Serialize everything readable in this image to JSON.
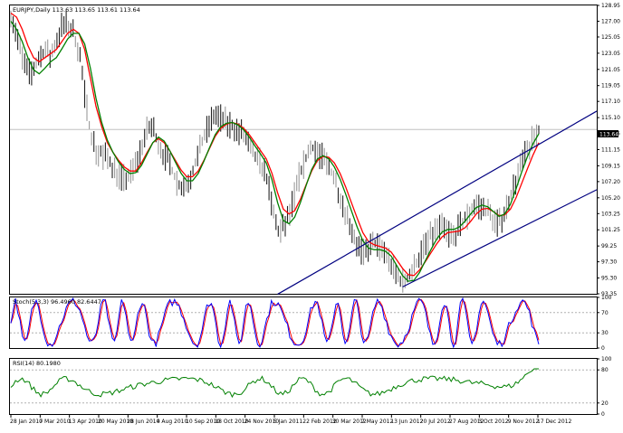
{
  "chart_data": {
    "type": "line",
    "instrument": {
      "header": "EURJPY,Daily  113.63 113.65 113.61 113.64",
      "last_price_label": "113.64",
      "price_series": [
        128.0,
        125.5,
        122.5,
        120.5,
        121.0,
        122.5,
        123.5,
        122.5,
        124.5,
        126.5,
        126.5,
        125.5,
        123.5,
        118.0,
        113.5,
        111.0,
        110.5,
        110.2,
        109.0,
        108.0,
        107.5,
        108.0,
        109.5,
        111.5,
        113.5,
        114.0,
        112.0,
        110.5,
        109.5,
        107.5,
        106.5,
        107.0,
        108.5,
        110.5,
        112.5,
        114.5,
        115.5,
        115.0,
        114.5,
        114.2,
        113.5,
        113.0,
        111.5,
        110.0,
        109.5,
        108.0,
        104.0,
        101.0,
        101.5,
        103.0,
        105.5,
        108.5,
        110.0,
        111.5,
        111.0,
        110.0,
        109.0,
        107.5,
        105.5,
        103.5,
        101.5,
        99.5,
        98.2,
        99.0,
        99.5,
        99.0,
        98.5,
        97.0,
        95.5,
        94.8,
        95.2,
        96.5,
        98.0,
        99.5,
        100.5,
        101.5,
        101.5,
        101.0,
        100.5,
        101.5,
        102.5,
        103.5,
        104.5,
        104.0,
        103.5,
        102.5,
        102.0,
        103.5,
        105.5,
        107.5,
        109.5,
        111.0,
        112.5,
        113.5
      ],
      "red_ma": [
        128.0,
        127.5,
        126.0,
        124.0,
        122.5,
        122.0,
        122.5,
        123.0,
        123.5,
        124.5,
        125.5,
        126.0,
        125.5,
        123.5,
        120.0,
        116.5,
        114.0,
        112.0,
        110.8,
        109.8,
        109.0,
        108.5,
        108.5,
        109.5,
        110.8,
        112.0,
        112.5,
        112.0,
        111.0,
        109.8,
        108.6,
        107.8,
        107.8,
        108.5,
        109.8,
        111.3,
        112.8,
        113.8,
        114.3,
        114.5,
        114.3,
        113.8,
        113.0,
        112.0,
        111.0,
        110.0,
        108.2,
        105.8,
        103.8,
        103.2,
        103.6,
        105.0,
        106.8,
        108.5,
        109.8,
        110.3,
        110.2,
        109.5,
        108.2,
        106.5,
        104.6,
        102.7,
        100.9,
        99.8,
        99.4,
        99.2,
        99.0,
        98.5,
        97.5,
        96.5,
        95.7,
        95.6,
        96.3,
        97.3,
        98.4,
        99.5,
        100.4,
        100.9,
        101.0,
        101.1,
        101.5,
        102.3,
        103.2,
        103.8,
        103.9,
        103.5,
        103.0,
        103.1,
        103.8,
        105.2,
        107.0,
        108.8,
        110.5,
        112.0
      ],
      "green_ma": [
        127.0,
        126.0,
        124.5,
        122.5,
        121.0,
        120.5,
        121.2,
        122.0,
        122.5,
        123.6,
        124.8,
        125.5,
        125.5,
        124.2,
        121.2,
        117.5,
        114.5,
        112.3,
        110.8,
        109.6,
        108.7,
        108.2,
        108.3,
        109.2,
        110.6,
        112.0,
        112.7,
        112.2,
        111.0,
        109.6,
        108.2,
        107.3,
        107.3,
        108.2,
        109.7,
        111.4,
        113.0,
        114.0,
        114.4,
        114.5,
        114.2,
        113.6,
        112.7,
        111.6,
        110.6,
        109.5,
        107.4,
        104.6,
        102.4,
        102.0,
        102.8,
        104.6,
        106.7,
        108.7,
        110.0,
        110.4,
        110.0,
        109.0,
        107.5,
        105.6,
        103.6,
        101.6,
        99.9,
        99.0,
        98.8,
        98.8,
        98.6,
        98.0,
        96.8,
        95.6,
        94.9,
        95.0,
        96.0,
        97.4,
        98.8,
        100.1,
        101.0,
        101.3,
        101.3,
        101.6,
        102.3,
        103.2,
        104.0,
        104.3,
        104.1,
        103.5,
        102.9,
        103.2,
        104.4,
        106.3,
        108.4,
        110.3,
        111.9,
        113.1
      ],
      "ylim": [
        93.35,
        128.95
      ],
      "y_ticks": [
        "128.95",
        "127.00",
        "125.05",
        "123.05",
        "121.05",
        "119.05",
        "117.10",
        "115.10",
        "113.15",
        "111.15",
        "109.15",
        "107.20",
        "105.20",
        "103.25",
        "101.25",
        "99.25",
        "97.30",
        "95.30",
        "93.35"
      ],
      "channel": {
        "upper": {
          "from": {
            "x_index": 47,
            "y": 93.3
          },
          "to": {
            "x_index": 112,
            "y": 115.9
          }
        },
        "lower": {
          "from": {
            "x_index": 69,
            "y": 94.2
          },
          "to": {
            "x_index": 112,
            "y": 106.2
          }
        }
      },
      "colors": {
        "price": "#000000",
        "red_ma": "#ff0000",
        "green_ma": "#008000",
        "channel": "#000080"
      }
    },
    "stochastic": {
      "header": "Stoch(5,3,3) 96.4960 82.6447",
      "ylim": [
        0,
        100
      ],
      "y_ticks": [
        "100",
        "70",
        "30",
        "0"
      ],
      "levels": [
        70,
        30
      ],
      "colors": {
        "main": "#0000ff",
        "signal": "#ff0000"
      }
    },
    "rsi": {
      "header": "RSI(14) 80.1980",
      "ylim": [
        0,
        100
      ],
      "y_ticks": [
        "100",
        "80",
        "20",
        "0"
      ],
      "levels": [
        80,
        20
      ],
      "color": "#008000"
    },
    "x_labels": [
      "28 Jan 2010",
      "7 Mar 2010",
      "13 Apr 2010",
      "20 May 2010",
      "28 Jun 2010",
      "4 Aug 2010",
      "10 Sep 2010",
      "18 Oct 2010",
      "24 Nov 2010",
      "5 Jan 2011",
      "22 Feb 2012",
      "30 Mar 2012",
      "7 May 2012",
      "13 Jun 2012",
      "20 Jul 2012",
      "27 Aug 2012",
      "3 Oct 2012",
      "9 Nov 2012",
      "17 Dec 2012"
    ]
  }
}
